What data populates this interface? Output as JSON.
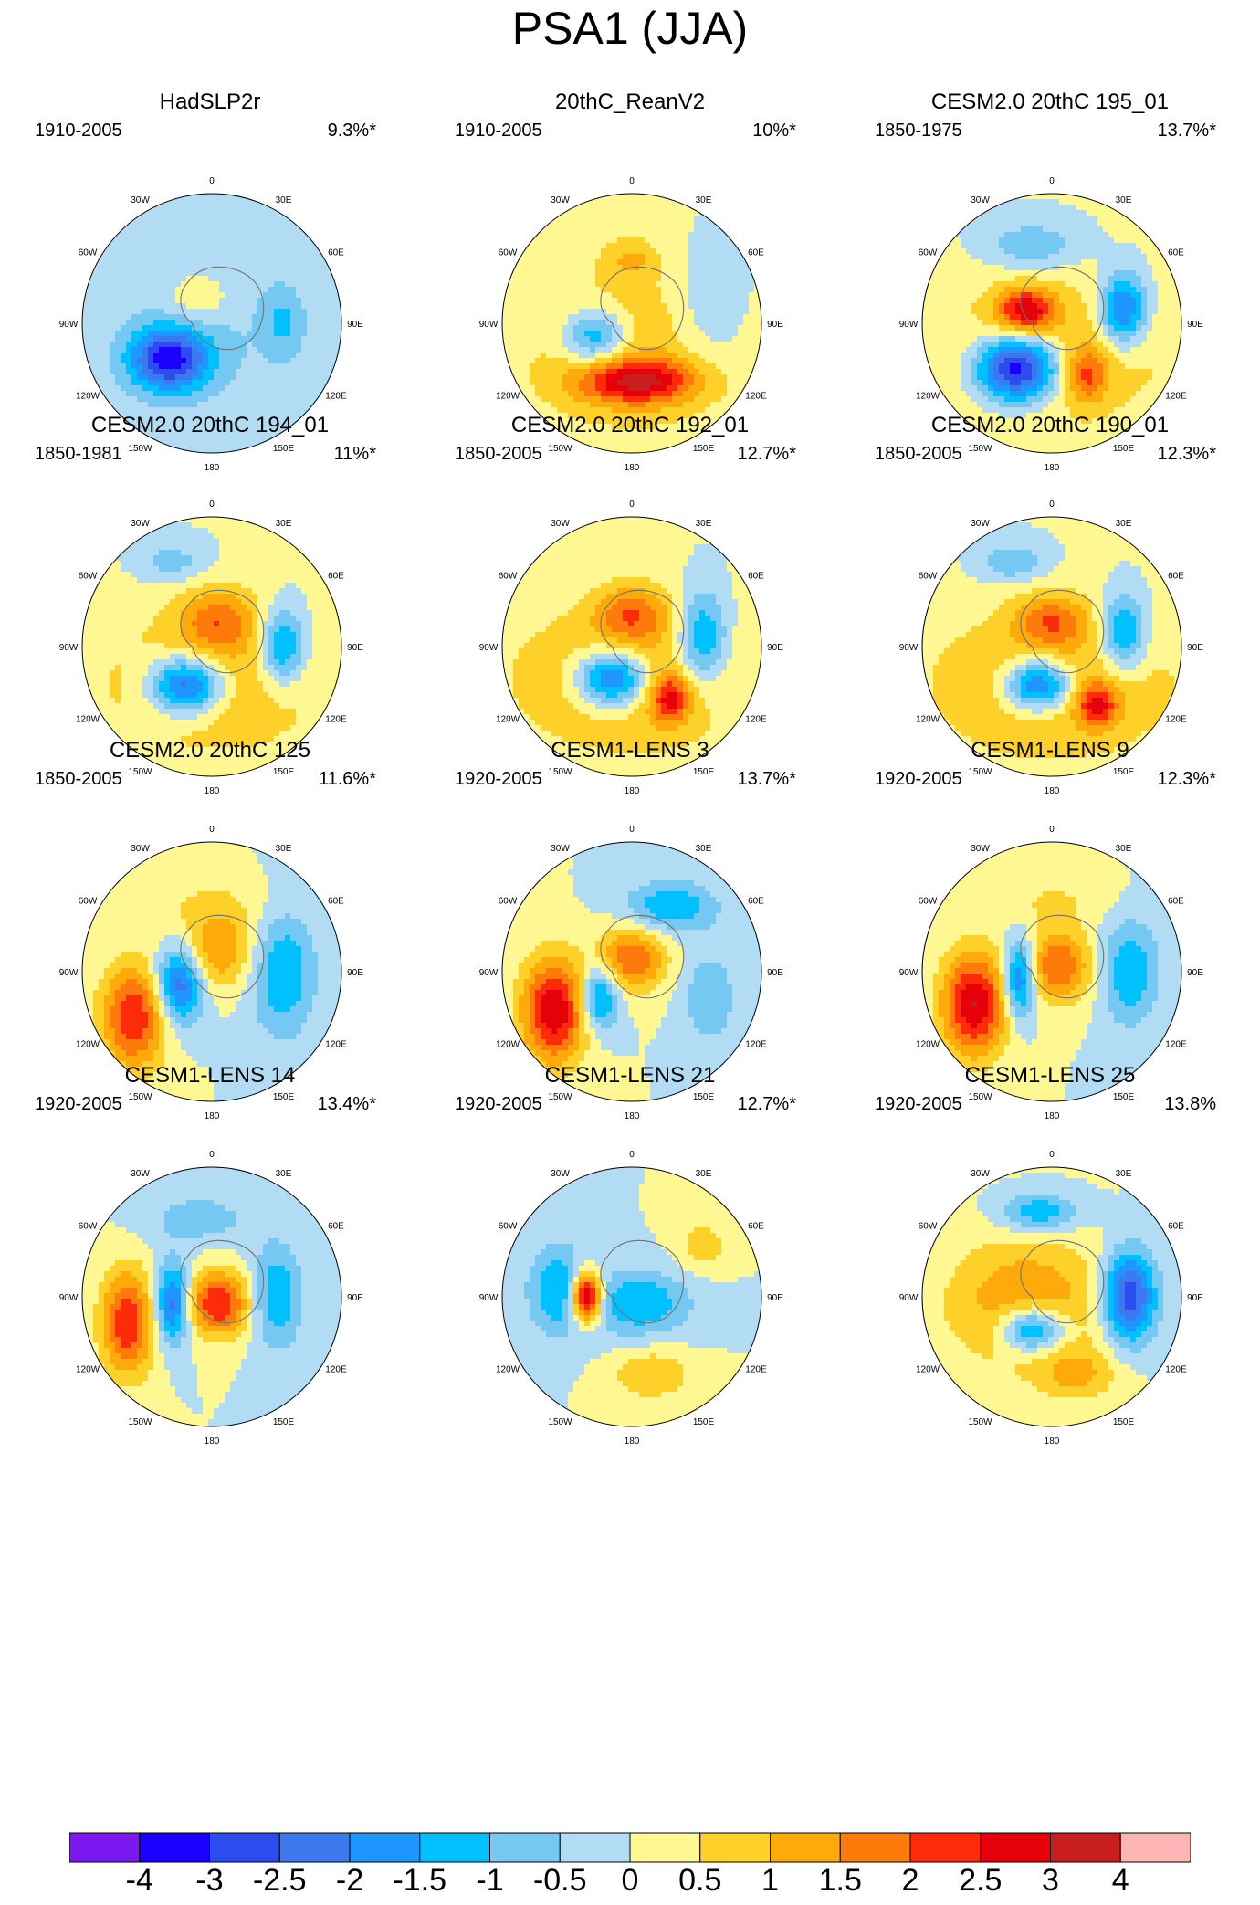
{
  "title": "PSA1 (JJA)",
  "lon_labels": [
    "0",
    "30E",
    "60E",
    "90E",
    "120E",
    "150E",
    "180",
    "150W",
    "120W",
    "90W",
    "60W",
    "30W"
  ],
  "panels": [
    {
      "title": "HadSLP2r",
      "period": "1910-2005",
      "variance": "9.3%*",
      "blobs": [
        [
          -0.5,
          0,
          0.0,
          1.0,
          0.8
        ],
        [
          -3.0,
          -0.33,
          0.28,
          0.3,
          0.24
        ],
        [
          0.8,
          -0.1,
          -0.2,
          0.25,
          0.2
        ],
        [
          -0.8,
          0.55,
          0.0,
          0.15,
          0.25
        ]
      ]
    },
    {
      "title": "20thC_ReanV2",
      "period": "1910-2005",
      "variance": "10%*",
      "blobs": [
        [
          1.0,
          0.0,
          0.2,
          0.9,
          0.7
        ],
        [
          -2.0,
          -0.28,
          0.1,
          0.25,
          0.22
        ],
        [
          2.5,
          0.05,
          0.45,
          0.45,
          0.17
        ],
        [
          0.8,
          0.0,
          -0.5,
          0.2,
          0.15
        ],
        [
          -0.8,
          0.6,
          -0.1,
          0.3,
          0.5
        ]
      ]
    },
    {
      "title": "CESM2.0 20thC 195_01",
      "period": "1850-1975",
      "variance": "13.7%*",
      "blobs": [
        [
          1.0,
          0.0,
          0.25,
          1.0,
          0.6
        ],
        [
          -4.0,
          -0.27,
          0.35,
          0.32,
          0.26
        ],
        [
          2.5,
          -0.2,
          -0.1,
          0.22,
          0.17
        ],
        [
          -2.5,
          0.55,
          -0.1,
          0.18,
          0.28
        ],
        [
          -1.0,
          -0.15,
          -0.6,
          0.35,
          0.18
        ],
        [
          1.5,
          0.27,
          0.4,
          0.15,
          0.2
        ]
      ]
    },
    {
      "title": "CESM2.0 20thC 194_01",
      "period": "1850-1981",
      "variance": "11%*",
      "blobs": [
        [
          1.0,
          0.0,
          0.3,
          1.0,
          0.6
        ],
        [
          -3.0,
          -0.2,
          0.3,
          0.28,
          0.22
        ],
        [
          1.5,
          0.05,
          -0.2,
          0.3,
          0.25
        ],
        [
          -2.0,
          0.55,
          0.0,
          0.18,
          0.3
        ],
        [
          -0.8,
          -0.3,
          -0.65,
          0.25,
          0.15
        ]
      ]
    },
    {
      "title": "CESM2.0 20thC 192_01",
      "period": "1850-2005",
      "variance": "12.7%*",
      "blobs": [
        [
          1.2,
          0.0,
          0.25,
          1.0,
          0.6
        ],
        [
          -3.0,
          -0.15,
          0.25,
          0.28,
          0.22
        ],
        [
          1.5,
          0.0,
          -0.25,
          0.28,
          0.22
        ],
        [
          -2.0,
          0.55,
          -0.05,
          0.2,
          0.38
        ],
        [
          2.0,
          0.3,
          0.4,
          0.15,
          0.18
        ]
      ]
    },
    {
      "title": "CESM2.0 20thC 190_01",
      "period": "1850-2005",
      "variance": "12.3%*",
      "blobs": [
        [
          1.2,
          0.0,
          0.3,
          1.0,
          0.6
        ],
        [
          -3.0,
          -0.1,
          0.3,
          0.26,
          0.2
        ],
        [
          1.5,
          0.0,
          -0.2,
          0.28,
          0.2
        ],
        [
          -2.0,
          0.55,
          -0.1,
          0.18,
          0.3
        ],
        [
          2.0,
          0.35,
          0.45,
          0.15,
          0.16
        ],
        [
          -1.0,
          -0.3,
          -0.65,
          0.25,
          0.15
        ]
      ]
    },
    {
      "title": "CESM2.0 20thC 125",
      "period": "1850-2005",
      "variance": "11.6%*",
      "blobs": [
        [
          2.5,
          -0.6,
          0.35,
          0.25,
          0.4
        ],
        [
          -2.5,
          -0.25,
          0.1,
          0.18,
          0.3
        ],
        [
          1.5,
          0.05,
          -0.15,
          0.28,
          0.28
        ],
        [
          -1.5,
          0.55,
          0.0,
          0.25,
          0.5
        ],
        [
          0.5,
          0.0,
          -0.5,
          0.6,
          0.25
        ]
      ]
    },
    {
      "title": "CESM1-LENS 3",
      "period": "1920-2005",
      "variance": "13.7%*",
      "blobs": [
        [
          3.0,
          -0.6,
          0.3,
          0.25,
          0.4
        ],
        [
          -2.0,
          -0.25,
          0.2,
          0.15,
          0.25
        ],
        [
          2.0,
          0.0,
          -0.1,
          0.26,
          0.25
        ],
        [
          -1.5,
          0.3,
          -0.5,
          0.35,
          0.2
        ],
        [
          -1.0,
          0.6,
          0.2,
          0.2,
          0.35
        ]
      ]
    },
    {
      "title": "CESM1-LENS 9",
      "period": "1920-2005",
      "variance": "12.3%*",
      "blobs": [
        [
          3.0,
          -0.6,
          0.25,
          0.25,
          0.4
        ],
        [
          -2.5,
          -0.25,
          0.05,
          0.12,
          0.3
        ],
        [
          2.0,
          0.05,
          -0.05,
          0.26,
          0.28
        ],
        [
          -1.5,
          0.6,
          0.0,
          0.22,
          0.4
        ],
        [
          0.5,
          0.0,
          -0.55,
          0.5,
          0.2
        ]
      ]
    },
    {
      "title": "CESM1-LENS 14",
      "period": "1920-2005",
      "variance": "13.4%*",
      "blobs": [
        [
          2.5,
          -0.65,
          0.2,
          0.2,
          0.4
        ],
        [
          -2.5,
          -0.3,
          0.05,
          0.13,
          0.3
        ],
        [
          2.5,
          0.05,
          0.05,
          0.25,
          0.25
        ],
        [
          -1.5,
          0.5,
          0.0,
          0.2,
          0.4
        ],
        [
          -0.8,
          -0.1,
          -0.6,
          0.4,
          0.2
        ]
      ]
    },
    {
      "title": "CESM1-LENS 21",
      "period": "1920-2005",
      "variance": "12.7%*",
      "blobs": [
        [
          4.0,
          -0.35,
          0.0,
          0.12,
          0.2
        ],
        [
          -1.5,
          0.05,
          0.05,
          0.4,
          0.25
        ],
        [
          -1.5,
          -0.55,
          -0.05,
          0.25,
          0.35
        ],
        [
          1.0,
          0.15,
          0.6,
          0.3,
          0.2
        ],
        [
          0.8,
          0.55,
          -0.4,
          0.2,
          0.2
        ]
      ]
    },
    {
      "title": "CESM1-LENS 25",
      "period": "1920-2005",
      "variance": "13.8%",
      "blobs": [
        [
          1.5,
          -0.2,
          0.05,
          0.6,
          0.5
        ],
        [
          -2.5,
          -0.15,
          0.25,
          0.25,
          0.18
        ],
        [
          -3.0,
          0.6,
          0.0,
          0.2,
          0.35
        ],
        [
          -1.5,
          -0.1,
          -0.65,
          0.3,
          0.15
        ],
        [
          1.0,
          0.2,
          0.6,
          0.3,
          0.2
        ]
      ]
    }
  ],
  "colorbar": {
    "colors": [
      "#7b1af0",
      "#1c00ff",
      "#2c4cf0",
      "#3c78ee",
      "#1e96ff",
      "#00c0ff",
      "#75c8f2",
      "#b1dcf3",
      "#fef792",
      "#fdd12a",
      "#fdaa0a",
      "#fe7a0a",
      "#fe2b0a",
      "#e6000a",
      "#c91e1e",
      "#fdb4b4"
    ],
    "labels": [
      "-4",
      "-3",
      "-2.5",
      "-2",
      "-1.5",
      "-1",
      "-0.5",
      "0",
      "0.5",
      "1",
      "1.5",
      "2",
      "2.5",
      "3",
      "4"
    ]
  }
}
